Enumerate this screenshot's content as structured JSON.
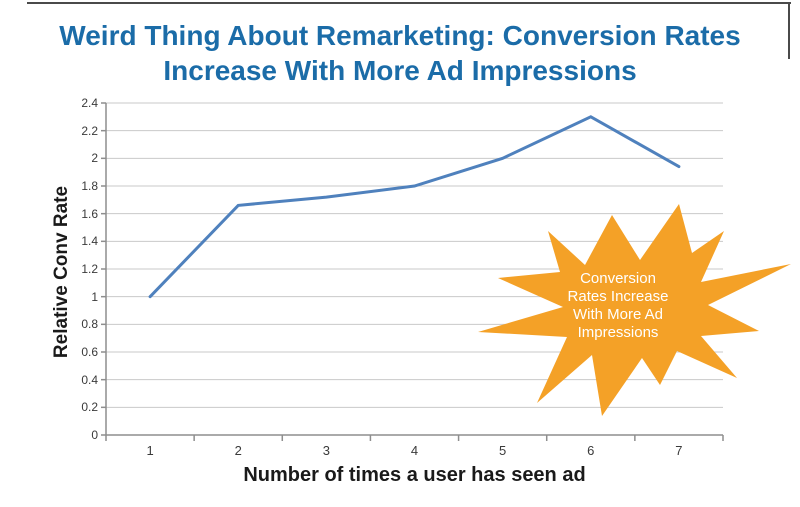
{
  "page": {
    "title_lines": [
      "Weird Thing About Remarketing: Conversion Rates",
      "Increase With More Ad Impressions"
    ],
    "title_color": "#1B6CA8",
    "background_color": "#FFFFFF"
  },
  "chart_data": {
    "type": "line",
    "categories": [
      "1",
      "2",
      "3",
      "4",
      "5",
      "6",
      "7"
    ],
    "values": [
      1,
      1.66,
      1.72,
      1.8,
      2.0,
      2.3,
      1.94
    ],
    "xlabel": "Number of times a user has seen ad",
    "ylabel": "Relative Conv Rate",
    "ylim": [
      0,
      2.4
    ],
    "ytick_labels": [
      "0",
      "0.2",
      "0.4",
      "0.6",
      "0.8",
      "1",
      "1.2",
      "1.4",
      "1.6",
      "1.8",
      "2",
      "2.2",
      "2.4"
    ],
    "grid": true,
    "legend": "none",
    "line_color": "#4F81BD",
    "gridline_color": "#C9C9C9",
    "axis_color": "#8E8E8E",
    "tick_label_color": "#3A3A3A"
  },
  "annotation": {
    "shape": "starburst",
    "lines": [
      "Conversion",
      "Rates Increase",
      "With More Ad",
      "Impressions"
    ],
    "fill_color": "#F4A127",
    "text_color": "#FFFFFF"
  }
}
